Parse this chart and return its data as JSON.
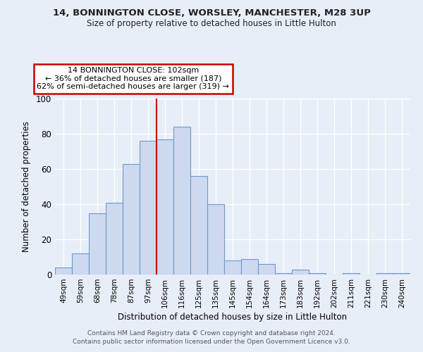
{
  "title1": "14, BONNINGTON CLOSE, WORSLEY, MANCHESTER, M28 3UP",
  "title2": "Size of property relative to detached houses in Little Hulton",
  "xlabel": "Distribution of detached houses by size in Little Hulton",
  "ylabel": "Number of detached properties",
  "bar_labels": [
    "49sqm",
    "59sqm",
    "68sqm",
    "78sqm",
    "87sqm",
    "97sqm",
    "106sqm",
    "116sqm",
    "125sqm",
    "135sqm",
    "145sqm",
    "154sqm",
    "164sqm",
    "173sqm",
    "183sqm",
    "192sqm",
    "202sqm",
    "211sqm",
    "221sqm",
    "230sqm",
    "240sqm"
  ],
  "bar_values": [
    4,
    12,
    35,
    41,
    63,
    76,
    77,
    84,
    56,
    40,
    8,
    9,
    6,
    1,
    3,
    1,
    0,
    1,
    0,
    1,
    1
  ],
  "bar_color": "#ccd9ee",
  "bar_edge_color": "#7099cc",
  "vline_x_idx": 5.5,
  "vline_color": "#cc0000",
  "annotation_text": "14 BONNINGTON CLOSE: 102sqm\n← 36% of detached houses are smaller (187)\n62% of semi-detached houses are larger (319) →",
  "annotation_box_color": "#ffffff",
  "annotation_box_edge": "#cc0000",
  "ylim": [
    0,
    100
  ],
  "yticks": [
    0,
    20,
    40,
    60,
    80,
    100
  ],
  "footer1": "Contains HM Land Registry data © Crown copyright and database right 2024.",
  "footer2": "Contains public sector information licensed under the Open Government Licence v3.0.",
  "bg_color": "#e8eef8",
  "plot_bg_color": "#e8eef8"
}
